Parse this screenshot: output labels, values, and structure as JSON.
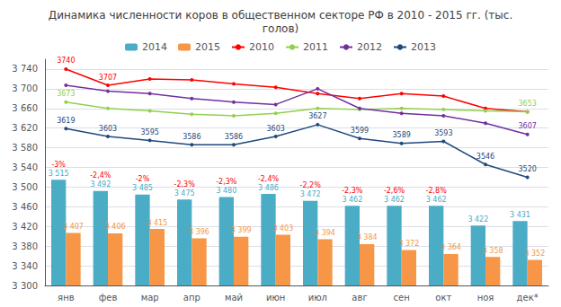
{
  "chart_data": {
    "type": "bar",
    "title": "Динамика численности коров в общественном секторе РФ в 2010 - 2015 гг. (тыс.\nголов)",
    "categories": [
      "янв",
      "фев",
      "мар",
      "апр",
      "май",
      "июн",
      "июл",
      "авг",
      "сен",
      "окт",
      "ноя",
      "дек*"
    ],
    "series": [
      {
        "name": "2014",
        "type": "bar",
        "color": "#4BACC6",
        "values": [
          3515,
          3492,
          3485,
          3475,
          3480,
          3486,
          3472,
          3462,
          3462,
          3462,
          3422,
          3431
        ],
        "value_labels": [
          "3 515",
          "3 492",
          "3 485",
          "3 475",
          "3 480",
          "3 486",
          "3 472",
          "3 462",
          "3 462",
          "3 462",
          "3 422",
          "3 431"
        ]
      },
      {
        "name": "2015",
        "type": "bar",
        "color": "#F79646",
        "values": [
          3407,
          3406,
          3415,
          3396,
          3399,
          3403,
          3394,
          3384,
          3372,
          3364,
          3358,
          3352
        ],
        "value_labels": [
          "3 407",
          "3 406",
          "3 415",
          "3 396",
          "3 399",
          "3 403",
          "3 394",
          "3 384",
          "3 372",
          "3 364",
          "3 358",
          "3 352"
        ]
      },
      {
        "name": "2010",
        "type": "line",
        "marker": "circle",
        "color": "#FF0000",
        "values": [
          3740,
          3707,
          3720,
          3718,
          3710,
          3703,
          3690,
          3680,
          3690,
          3685,
          3660,
          3653
        ],
        "value_labels": [
          "3740",
          "3707",
          null,
          null,
          null,
          null,
          null,
          null,
          null,
          null,
          null,
          null
        ]
      },
      {
        "name": "2011",
        "type": "line",
        "marker": "circle",
        "color": "#92D050",
        "values": [
          3673,
          3660,
          3655,
          3648,
          3645,
          3650,
          3660,
          3658,
          3660,
          3658,
          3655,
          3653
        ],
        "value_labels": [
          "3673",
          null,
          null,
          null,
          null,
          null,
          null,
          null,
          null,
          null,
          null,
          "3653"
        ]
      },
      {
        "name": "2012",
        "type": "line",
        "marker": "circle",
        "color": "#7030A0",
        "values": [
          3707,
          3695,
          3690,
          3680,
          3673,
          3668,
          3700,
          3660,
          3650,
          3645,
          3630,
          3607
        ],
        "value_labels": [
          null,
          null,
          null,
          null,
          null,
          null,
          null,
          null,
          null,
          null,
          null,
          "3607"
        ]
      },
      {
        "name": "2013",
        "type": "line",
        "marker": "circle",
        "color": "#1F497D",
        "values": [
          3619,
          3603,
          3595,
          3586,
          3586,
          3603,
          3627,
          3599,
          3589,
          3593,
          3546,
          3520
        ],
        "data_labels": true
      }
    ],
    "annotations": {
      "texts": [
        "-3%",
        "-2,4%",
        "-2%",
        "-2,3%",
        "-2,3%",
        "-2,4%",
        "-2,2%",
        "-2,3%",
        "-2,6%",
        "-2,8%",
        null,
        null
      ],
      "color": "#FF0000"
    },
    "ylim": [
      3300,
      3760
    ],
    "yticks": [
      {
        "value": 3300,
        "label": "3 300"
      },
      {
        "value": 3340,
        "label": "3 340"
      },
      {
        "value": 3380,
        "label": "3 380"
      },
      {
        "value": 3420,
        "label": "3 420"
      },
      {
        "value": 3460,
        "label": "3 460"
      },
      {
        "value": 3500,
        "label": "3 500"
      },
      {
        "value": 3540,
        "label": "3 540"
      },
      {
        "value": 3580,
        "label": "3 580"
      },
      {
        "value": 3620,
        "label": "3 620"
      },
      {
        "value": 3660,
        "label": "3 660"
      },
      {
        "value": 3700,
        "label": "3 700"
      },
      {
        "value": 3740,
        "label": "3 740"
      }
    ],
    "grid": true,
    "legend": "top"
  }
}
